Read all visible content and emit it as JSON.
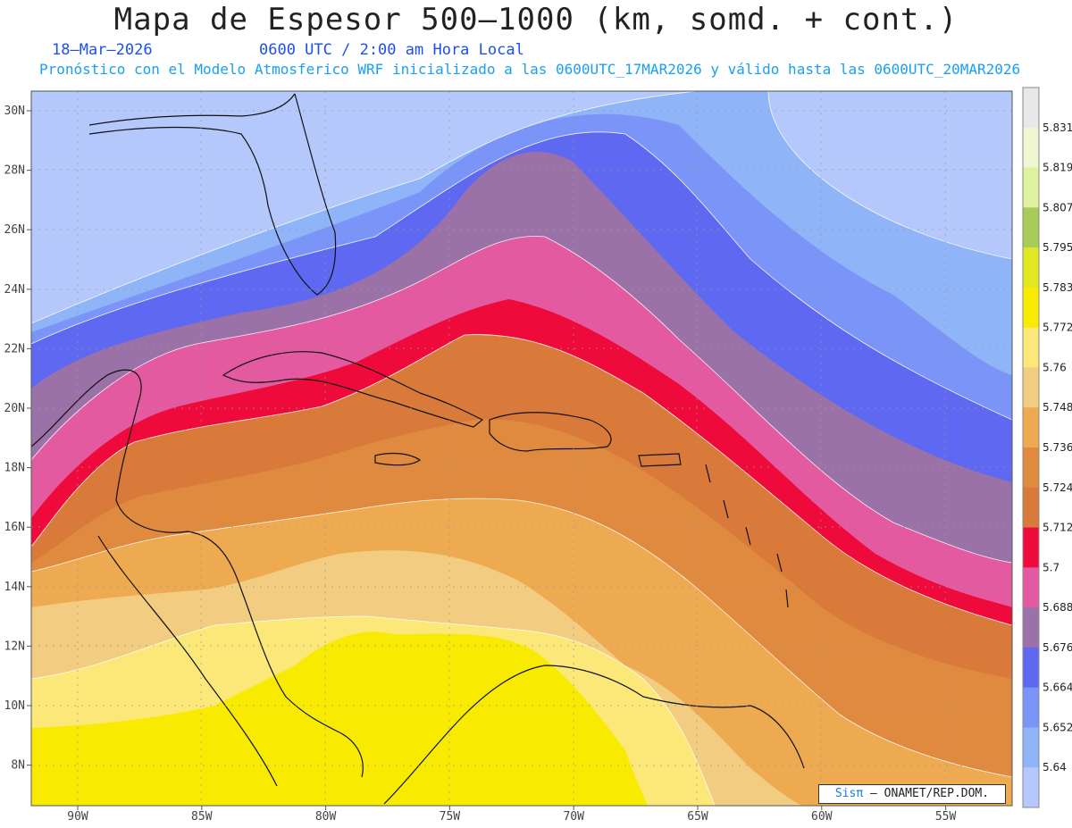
{
  "title": "Mapa de Espesor 500—1000 (km, somd. + cont.)",
  "date": "18—Mar—2026",
  "time": "0600 UTC / 2:00 am Hora Local",
  "info": "Pronóstico con el Modelo Atmosferico WRF inicializado a las 0600UTC_17MAR2026 y válido hasta las  0600UTC_20MAR2026",
  "credit": {
    "brand": "Sisπ",
    "text": "— ONAMET/REP.DOM."
  },
  "axes": {
    "lon_labels": [
      "90W",
      "85W",
      "80W",
      "75W",
      "70W",
      "65W",
      "60W",
      "55W"
    ],
    "lat_labels": [
      "30N",
      "28N",
      "26N",
      "24N",
      "22N",
      "20N",
      "18N",
      "16N",
      "14N",
      "12N",
      "10N",
      "8N"
    ]
  },
  "colorbar": {
    "labels": [
      "5.831",
      "5.819",
      "5.807",
      "5.795",
      "5.783",
      "5.772",
      "5.76",
      "5.748",
      "5.736",
      "5.724",
      "5.712",
      "5.7",
      "5.688",
      "5.676",
      "5.664",
      "5.652",
      "5.64"
    ],
    "colors": [
      "#e8e8e8",
      "#eef6d2",
      "#dff2a0",
      "#a8cc5a",
      "#dfe820",
      "#f8ea00",
      "#fbe878",
      "#f2cc80",
      "#eeaa50",
      "#e08a40",
      "#d97a3a",
      "#ee0a3a",
      "#e45aa0",
      "#9a72a8",
      "#5f68f0",
      "#7b94f8",
      "#90b4f8",
      "#b4c8fc"
    ]
  },
  "bands": {
    "b1": "#b4c8fc",
    "b2": "#90b4f8",
    "b3": "#7b94f8",
    "b4": "#5f68f0",
    "b5": "#9a72a8",
    "b6": "#e45aa0",
    "b7": "#ee0a3a",
    "b8": "#d97a3a",
    "b9": "#e08a40",
    "b10": "#eeaa50",
    "b11": "#f2cc80",
    "b12": "#fbe878",
    "b13": "#f8ea00"
  }
}
